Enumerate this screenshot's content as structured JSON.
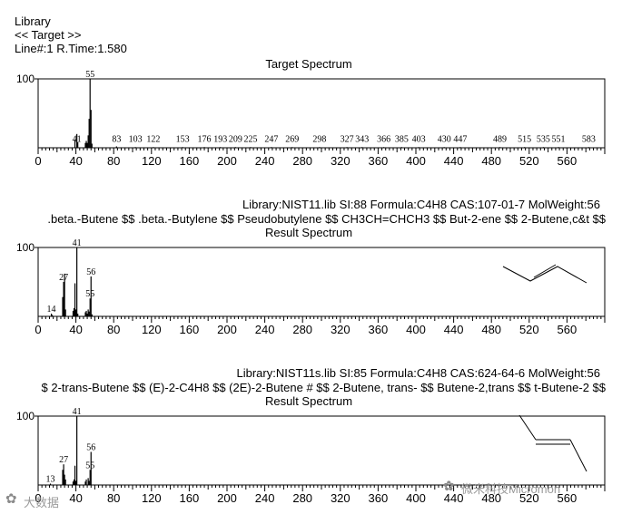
{
  "header": {
    "library": "Library",
    "nav": "<< Target >>",
    "line_info": "Line#:1   R.Time:1.580"
  },
  "watermark": {
    "left_text": "大数据",
    "right_text": "微米科技Micromon"
  },
  "chart_data": [
    {
      "type": "bar",
      "title": "Target Spectrum",
      "xlim": [
        0,
        600
      ],
      "ylim": [
        0,
        100
      ],
      "ytick_labels": [
        "100"
      ],
      "xtick_labels": [
        "0",
        "40",
        "80",
        "120",
        "160",
        "200",
        "240",
        "280",
        "320",
        "360",
        "400",
        "440",
        "480",
        "520",
        "560"
      ],
      "peaks": [
        {
          "x": 39,
          "y": 12
        },
        {
          "x": 41,
          "y": 20
        },
        {
          "x": 42,
          "y": 8
        },
        {
          "x": 50,
          "y": 7
        },
        {
          "x": 51,
          "y": 10
        },
        {
          "x": 52,
          "y": 7
        },
        {
          "x": 53,
          "y": 18
        },
        {
          "x": 54,
          "y": 42
        },
        {
          "x": 55,
          "y": 100
        },
        {
          "x": 56,
          "y": 55
        },
        {
          "x": 57,
          "y": 6
        },
        {
          "x": 83,
          "y": 2
        },
        {
          "x": 103,
          "y": 1
        },
        {
          "x": 122,
          "y": 1
        },
        {
          "x": 153,
          "y": 1
        },
        {
          "x": 176,
          "y": 1
        },
        {
          "x": 193,
          "y": 1
        },
        {
          "x": 209,
          "y": 1
        },
        {
          "x": 225,
          "y": 1
        },
        {
          "x": 247,
          "y": 1
        },
        {
          "x": 269,
          "y": 1
        },
        {
          "x": 298,
          "y": 1
        },
        {
          "x": 327,
          "y": 1
        },
        {
          "x": 343,
          "y": 1
        },
        {
          "x": 366,
          "y": 1
        },
        {
          "x": 385,
          "y": 1
        },
        {
          "x": 403,
          "y": 1
        },
        {
          "x": 430,
          "y": 1
        },
        {
          "x": 447,
          "y": 1
        },
        {
          "x": 489,
          "y": 1
        },
        {
          "x": 515,
          "y": 1
        },
        {
          "x": 535,
          "y": 1
        },
        {
          "x": 551,
          "y": 1
        },
        {
          "x": 583,
          "y": 1
        }
      ],
      "peak_labels": [
        {
          "x": 55,
          "text": "55",
          "y": 100
        },
        {
          "x": 41,
          "text": "41",
          "y": 6
        },
        {
          "x": 83,
          "text": "83",
          "y": 6
        },
        {
          "x": 103,
          "text": "103",
          "y": 6
        },
        {
          "x": 122,
          "text": "122",
          "y": 6
        },
        {
          "x": 153,
          "text": "153",
          "y": 6
        },
        {
          "x": 176,
          "text": "176",
          "y": 6
        },
        {
          "x": 193,
          "text": "193",
          "y": 6
        },
        {
          "x": 209,
          "text": "209",
          "y": 6
        },
        {
          "x": 225,
          "text": "225",
          "y": 6
        },
        {
          "x": 247,
          "text": "247",
          "y": 6
        },
        {
          "x": 269,
          "text": "269",
          "y": 6
        },
        {
          "x": 298,
          "text": "298",
          "y": 6
        },
        {
          "x": 327,
          "text": "327",
          "y": 6
        },
        {
          "x": 343,
          "text": "343",
          "y": 6
        },
        {
          "x": 366,
          "text": "366",
          "y": 6
        },
        {
          "x": 385,
          "text": "385",
          "y": 6
        },
        {
          "x": 403,
          "text": "403",
          "y": 6
        },
        {
          "x": 430,
          "text": "430",
          "y": 6
        },
        {
          "x": 447,
          "text": "447",
          "y": 6
        },
        {
          "x": 489,
          "text": "489",
          "y": 6
        },
        {
          "x": 515,
          "text": "515",
          "y": 6
        },
        {
          "x": 535,
          "text": "535",
          "y": 6
        },
        {
          "x": 551,
          "text": "551",
          "y": 6
        },
        {
          "x": 583,
          "text": "583",
          "y": 6
        }
      ]
    },
    {
      "type": "bar",
      "title": "Result Spectrum",
      "info": "Library:NIST11.lib    SI:88    Formula:C4H8    CAS:107-01-7    MolWeight:56",
      "names": ".beta.-Butene $$ .beta.-Butylene $$ Pseudobutylene $$ CH3CH=CHCH3 $$ But-2-ene $$ 2-Butene,c&t $$",
      "xlim": [
        0,
        600
      ],
      "ylim": [
        0,
        100
      ],
      "ytick_labels": [
        "100"
      ],
      "xtick_labels": [
        "0",
        "40",
        "80",
        "120",
        "160",
        "200",
        "240",
        "280",
        "320",
        "360",
        "400",
        "440",
        "480",
        "520",
        "560"
      ],
      "structure": "trans-2-butene",
      "peaks": [
        {
          "x": 14,
          "y": 4
        },
        {
          "x": 15,
          "y": 2
        },
        {
          "x": 26,
          "y": 28
        },
        {
          "x": 27,
          "y": 50
        },
        {
          "x": 28,
          "y": 62
        },
        {
          "x": 29,
          "y": 10
        },
        {
          "x": 37,
          "y": 8
        },
        {
          "x": 38,
          "y": 12
        },
        {
          "x": 39,
          "y": 48
        },
        {
          "x": 40,
          "y": 10
        },
        {
          "x": 41,
          "y": 100
        },
        {
          "x": 42,
          "y": 4
        },
        {
          "x": 50,
          "y": 6
        },
        {
          "x": 51,
          "y": 8
        },
        {
          "x": 52,
          "y": 4
        },
        {
          "x": 53,
          "y": 10
        },
        {
          "x": 54,
          "y": 7
        },
        {
          "x": 55,
          "y": 26
        },
        {
          "x": 56,
          "y": 58
        },
        {
          "x": 57,
          "y": 3
        }
      ],
      "peak_labels": [
        {
          "x": 41,
          "text": "41",
          "y": 100
        },
        {
          "x": 56,
          "text": "56",
          "y": 58
        },
        {
          "x": 27,
          "text": "27",
          "y": 50
        },
        {
          "x": 55,
          "text": "55",
          "y": 26
        },
        {
          "x": 14,
          "text": "14",
          "y": 4
        }
      ]
    },
    {
      "type": "bar",
      "title": "Result Spectrum",
      "info": "Library:NIST11s.lib    SI:85    Formula:C4H8    CAS:624-64-6    MolWeight:56",
      "names": "$ 2-trans-Butene $$ (E)-2-C4H8 $$ (2E)-2-Butene # $$ 2-Butene, trans- $$ Butene-2,trans $$ t-Butene-2 $$",
      "xlim": [
        0,
        600
      ],
      "ylim": [
        0,
        100
      ],
      "ytick_labels": [
        "100"
      ],
      "xtick_labels": [
        "0",
        "40",
        "80",
        "120",
        "160",
        "200",
        "240",
        "280",
        "320",
        "360",
        "400",
        "440",
        "480",
        "520",
        "560"
      ],
      "structure": "trans-2-butene",
      "peaks": [
        {
          "x": 13,
          "y": 2
        },
        {
          "x": 26,
          "y": 22
        },
        {
          "x": 27,
          "y": 30
        },
        {
          "x": 28,
          "y": 15
        },
        {
          "x": 29,
          "y": 8
        },
        {
          "x": 37,
          "y": 5
        },
        {
          "x": 38,
          "y": 8
        },
        {
          "x": 39,
          "y": 28
        },
        {
          "x": 40,
          "y": 6
        },
        {
          "x": 41,
          "y": 100
        },
        {
          "x": 50,
          "y": 5
        },
        {
          "x": 51,
          "y": 8
        },
        {
          "x": 53,
          "y": 10
        },
        {
          "x": 54,
          "y": 6
        },
        {
          "x": 55,
          "y": 22
        },
        {
          "x": 56,
          "y": 48
        }
      ],
      "peak_labels": [
        {
          "x": 41,
          "text": "41",
          "y": 100
        },
        {
          "x": 56,
          "text": "56",
          "y": 48
        },
        {
          "x": 27,
          "text": "27",
          "y": 30
        },
        {
          "x": 55,
          "text": "55",
          "y": 22
        },
        {
          "x": 13,
          "text": "13",
          "y": 2
        }
      ]
    }
  ]
}
